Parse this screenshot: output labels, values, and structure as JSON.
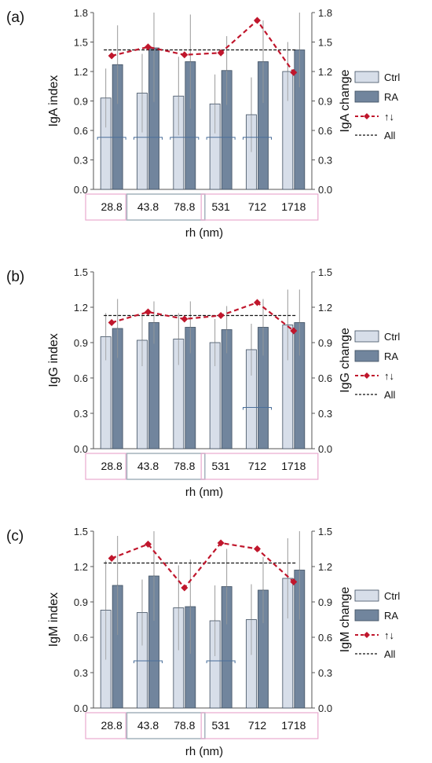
{
  "colors": {
    "ctrl": "#d7dee9",
    "ra": "#71859d",
    "change": "#c0162c",
    "all": "#111111",
    "error": "#9a9a9a",
    "sig": "#4a6f9a",
    "box_pink": "#e8a9cf",
    "box_gray": "#a4b2bc",
    "axis": "#555555",
    "bar_edge": "#3e4e60"
  },
  "legend": {
    "ctrl": "Ctrl",
    "ra": "RA",
    "change": "↑↓",
    "all": "All"
  },
  "chart_data": [
    {
      "type": "bar",
      "panel": "(a)",
      "ylabel": "IgA index",
      "y2label": "IgA change",
      "xlabel": "rh (nm)",
      "categories": [
        "28.8",
        "43.8",
        "78.8",
        "531",
        "712",
        "1718"
      ],
      "ylim": [
        0,
        1.8
      ],
      "yticks": [
        "0.0",
        "0.3",
        "0.6",
        "0.9",
        "1.2",
        "1.5",
        "1.8"
      ],
      "y2ticks": [
        "0.0",
        "0.3",
        "0.6",
        "0.9",
        "1.2",
        "1.5",
        "1.8"
      ],
      "series": [
        {
          "name": "Ctrl",
          "values": [
            0.93,
            0.98,
            0.95,
            0.87,
            0.76,
            1.2
          ],
          "error": [
            0.3,
            0.4,
            0.4,
            0.3,
            0.38,
            0.3
          ]
        },
        {
          "name": "RA",
          "values": [
            1.27,
            1.44,
            1.3,
            1.21,
            1.3,
            1.42
          ],
          "error": [
            0.4,
            0.55,
            0.48,
            0.35,
            0.42,
            0.38
          ]
        }
      ],
      "change": [
        1.36,
        1.45,
        1.37,
        1.39,
        1.72,
        1.19
      ],
      "all": 1.42,
      "sig_brackets": [
        0,
        1,
        2,
        3,
        4
      ]
    },
    {
      "type": "bar",
      "panel": "(b)",
      "ylabel": "IgG index",
      "y2label": "IgG change",
      "xlabel": "rh (nm)",
      "categories": [
        "28.8",
        "43.8",
        "78.8",
        "531",
        "712",
        "1718"
      ],
      "ylim": [
        0,
        1.5
      ],
      "yticks": [
        "0.0",
        "0.3",
        "0.6",
        "0.9",
        "1.2",
        "1.5"
      ],
      "y2ticks": [
        "0.0",
        "0.3",
        "0.6",
        "0.9",
        "1.2",
        "1.5"
      ],
      "series": [
        {
          "name": "Ctrl",
          "values": [
            0.95,
            0.92,
            0.93,
            0.9,
            0.84,
            1.05
          ],
          "error": [
            0.2,
            0.22,
            0.22,
            0.2,
            0.22,
            0.3
          ]
        },
        {
          "name": "RA",
          "values": [
            1.02,
            1.07,
            1.03,
            1.01,
            1.03,
            1.07
          ],
          "error": [
            0.25,
            0.18,
            0.22,
            0.2,
            0.24,
            0.28
          ]
        }
      ],
      "change": [
        1.07,
        1.16,
        1.1,
        1.13,
        1.24,
        1.0
      ],
      "all": 1.13,
      "sig_brackets": [
        4
      ]
    },
    {
      "type": "bar",
      "panel": "(c)",
      "ylabel": "IgM index",
      "y2label": "IgM change",
      "xlabel": "rh (nm)",
      "categories": [
        "28.8",
        "43.8",
        "78.8",
        "531",
        "712",
        "1718"
      ],
      "ylim": [
        0,
        1.5
      ],
      "yticks": [
        "0.0",
        "0.3",
        "0.6",
        "0.9",
        "1.2",
        "1.5"
      ],
      "y2ticks": [
        "0.0",
        "0.3",
        "0.6",
        "0.9",
        "1.2",
        "1.5"
      ],
      "series": [
        {
          "name": "Ctrl",
          "values": [
            0.83,
            0.81,
            0.85,
            0.74,
            0.75,
            1.1
          ],
          "error": [
            0.42,
            0.28,
            0.36,
            0.3,
            0.3,
            0.34
          ]
        },
        {
          "name": "RA",
          "values": [
            1.04,
            1.12,
            0.86,
            1.03,
            1.0,
            1.17
          ],
          "error": [
            0.42,
            0.38,
            0.4,
            0.32,
            0.28,
            0.42
          ]
        }
      ],
      "change": [
        1.27,
        1.39,
        1.02,
        1.4,
        1.35,
        1.07
      ],
      "all": 1.23,
      "sig_brackets": [
        1,
        3
      ]
    }
  ]
}
